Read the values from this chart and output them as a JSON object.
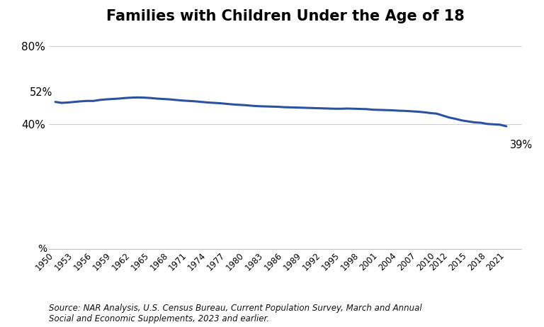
{
  "title": "Families with Children Under the Age of 18",
  "source_text": "Source: NAR Analysis, U.S. Census Bureau, Current Population Survey, March and Annual\nSocial and Economic Supplements, 2023 and earlier.",
  "line_color": "#2a52a0",
  "line_width": 2.2,
  "background_color": "#ffffff",
  "ylim": [
    35,
    87
  ],
  "yticks": [
    40,
    80
  ],
  "ytick_labels": [
    "40%",
    "80%"
  ],
  "ylabel": "%",
  "annotation_start_label": "52%",
  "annotation_end_label": "39%",
  "xlim_left": 1949,
  "xlim_right": 2023.5,
  "xticks": [
    1950,
    1953,
    1956,
    1959,
    1962,
    1965,
    1968,
    1971,
    1974,
    1977,
    1980,
    1983,
    1986,
    1989,
    1992,
    1995,
    1998,
    2001,
    2004,
    2007,
    2010,
    2012,
    2015,
    2018,
    2021
  ],
  "years": [
    1950,
    1951,
    1952,
    1953,
    1954,
    1955,
    1956,
    1957,
    1958,
    1959,
    1960,
    1961,
    1962,
    1963,
    1964,
    1965,
    1966,
    1967,
    1968,
    1969,
    1970,
    1971,
    1972,
    1973,
    1974,
    1975,
    1976,
    1977,
    1978,
    1979,
    1980,
    1981,
    1982,
    1983,
    1984,
    1985,
    1986,
    1987,
    1988,
    1989,
    1990,
    1991,
    1992,
    1993,
    1994,
    1995,
    1996,
    1997,
    1998,
    1999,
    2000,
    2001,
    2002,
    2003,
    2004,
    2005,
    2006,
    2007,
    2008,
    2009,
    2010,
    2011,
    2012,
    2013,
    2014,
    2015,
    2016,
    2017,
    2018,
    2019,
    2020,
    2021
  ],
  "values": [
    51.5,
    51.0,
    51.2,
    51.5,
    51.8,
    52.0,
    52.0,
    52.5,
    52.8,
    53.0,
    53.2,
    53.5,
    53.7,
    53.8,
    53.7,
    53.5,
    53.2,
    53.0,
    52.8,
    52.5,
    52.2,
    52.0,
    51.8,
    51.5,
    51.2,
    51.0,
    50.8,
    50.5,
    50.2,
    50.0,
    49.8,
    49.5,
    49.3,
    49.2,
    49.1,
    49.0,
    48.8,
    48.7,
    48.6,
    48.5,
    48.4,
    48.3,
    48.2,
    48.1,
    48.0,
    48.0,
    48.1,
    48.0,
    47.9,
    47.8,
    47.5,
    47.4,
    47.3,
    47.2,
    47.0,
    46.9,
    46.7,
    46.5,
    46.2,
    45.8,
    45.5,
    44.5,
    43.5,
    42.8,
    42.0,
    41.5,
    41.0,
    40.8,
    40.2,
    40.0,
    39.8,
    39.0
  ]
}
